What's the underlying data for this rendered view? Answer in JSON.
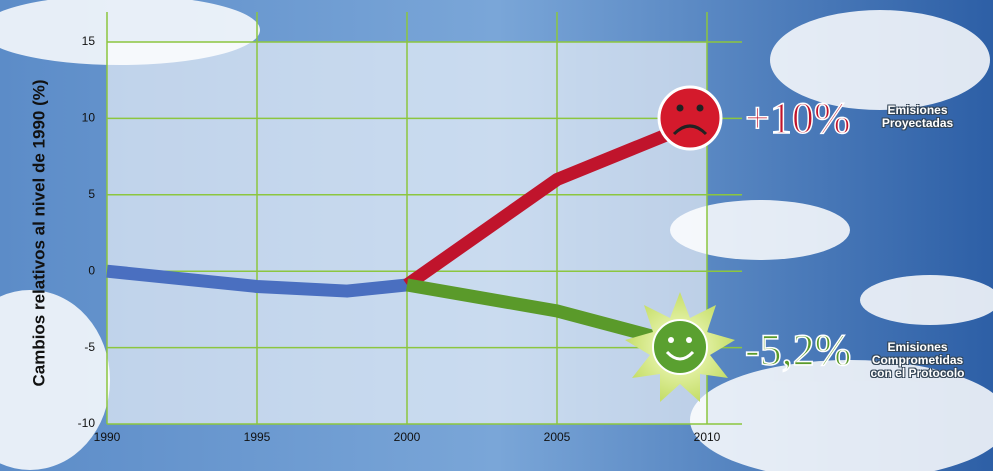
{
  "chart_data": {
    "type": "line",
    "y_label": "Cambios relativos al nivel de 1990 (%)",
    "x": [
      1990,
      1995,
      1998,
      2000,
      2005,
      2010
    ],
    "series": [
      {
        "color": "#4a6fc0",
        "values": [
          0,
          -1,
          -1.3,
          -0.9,
          null,
          null
        ]
      },
      {
        "name": "Emisiones Proyectadas",
        "color": "#c0142c",
        "values": [
          null,
          null,
          null,
          -0.9,
          6,
          10
        ],
        "value_labels": [
          null,
          null,
          null,
          null,
          null,
          "+10%"
        ]
      },
      {
        "name": "Emisiones Comprometidas con el Protocolo",
        "color": "#5a9a2a",
        "values": [
          null,
          null,
          null,
          -0.9,
          -2.6,
          -5.2
        ],
        "value_labels": [
          null,
          null,
          null,
          null,
          null,
          "-5,2%"
        ]
      }
    ],
    "xlim": [
      1990,
      2010
    ],
    "xticks": [
      1990,
      1995,
      2000,
      2005,
      2010
    ],
    "ylim": [
      -10,
      15
    ],
    "yticks": [
      -10,
      -5,
      0,
      5,
      10,
      15
    ],
    "grid": true
  }
}
